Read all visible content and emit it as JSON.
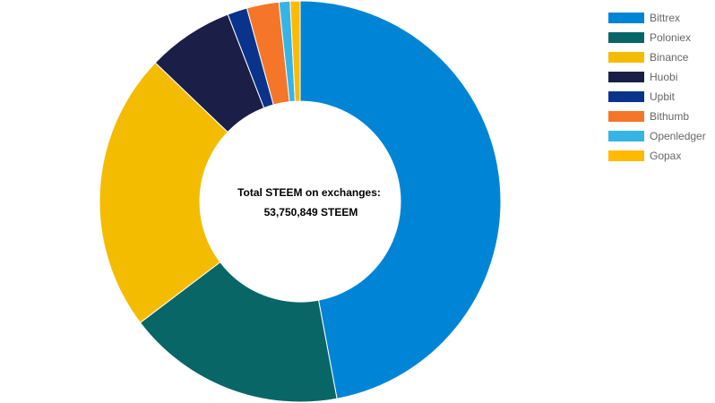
{
  "chart_data": {
    "type": "doughnut",
    "center_text": {
      "line1": "Total STEEM on exchanges:",
      "line2": "53,750,849 STEEM"
    },
    "legend_position": "right",
    "series": [
      {
        "name": "Bittrex",
        "value": 47.3,
        "color": "#0084d6"
      },
      {
        "name": "Poloniex",
        "value": 17.7,
        "color": "#086666"
      },
      {
        "name": "Binance",
        "value": 22.6,
        "color": "#f4bc00"
      },
      {
        "name": "Huobi",
        "value": 7.0,
        "color": "#1b1f48"
      },
      {
        "name": "Upbit",
        "value": 1.6,
        "color": "#0a338c"
      },
      {
        "name": "Bithumb",
        "value": 2.6,
        "color": "#f57628"
      },
      {
        "name": "Openledger",
        "value": 0.9,
        "color": "#37b4e6"
      },
      {
        "name": "Gopax",
        "value": 0.8,
        "color": "#ffba00"
      }
    ]
  }
}
